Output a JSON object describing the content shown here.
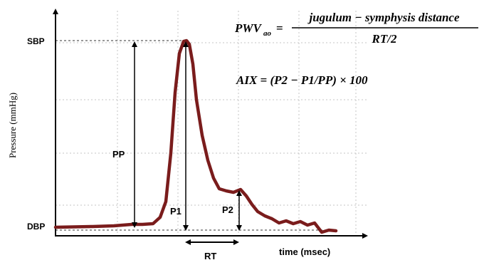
{
  "axes": {
    "y_label": "Pressure (mmHg)",
    "x_label": "time (msec)",
    "sbp_label": "SBP",
    "dbp_label": "DBP"
  },
  "labels": {
    "pp": "PP",
    "p1": "P1",
    "p2": "P2",
    "rt": "RT"
  },
  "formulas": {
    "pwv_lhs": "PWV",
    "pwv_sub": "ao",
    "pwv_eq": "=",
    "pwv_numerator": "jugulum − symphysis distance",
    "pwv_denominator": "RT/2",
    "aix": "AIX = (P2 − P1/PP) × 100"
  },
  "colors": {
    "waveform": "#7a1c1c",
    "axis": "#000000",
    "grid": "#bdbdbd"
  }
}
